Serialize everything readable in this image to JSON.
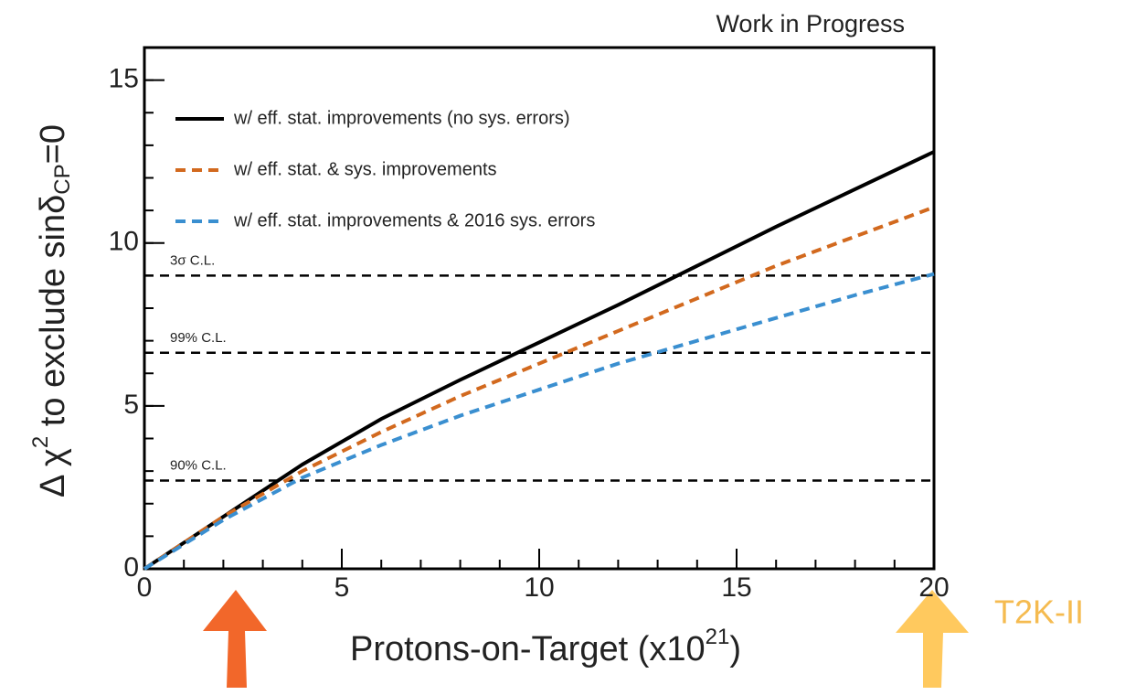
{
  "chart_data": {
    "type": "line",
    "annotation_top": "Work in Progress",
    "xlabel": [
      "Protons-on-Target (x10",
      "21",
      ")"
    ],
    "ylabel": [
      "Δ χ",
      "2",
      " to exclude sinδ",
      "CP",
      "=0"
    ],
    "x": [
      0,
      2,
      4,
      6,
      8,
      10,
      12,
      14,
      16,
      18,
      20
    ],
    "series": [
      {
        "name": "w/ eff. stat. improvements (no sys. errors)",
        "color": "#000000",
        "dash": false,
        "values": [
          0,
          1.6,
          3.2,
          4.6,
          5.8,
          6.95,
          8.1,
          9.3,
          10.5,
          11.65,
          12.8
        ]
      },
      {
        "name": "w/ eff. stat. & sys. improvements",
        "color": "#d2691e",
        "dash": true,
        "values": [
          0,
          1.6,
          3.0,
          4.2,
          5.3,
          6.3,
          7.3,
          8.3,
          9.3,
          10.2,
          11.1
        ]
      },
      {
        "name": "w/ eff. stat. improvements & 2016 sys. errors",
        "color": "#3a8fd0",
        "dash": true,
        "values": [
          0,
          1.5,
          2.8,
          3.8,
          4.7,
          5.5,
          6.3,
          7.0,
          7.7,
          8.4,
          9.05
        ]
      }
    ],
    "reference_lines": [
      {
        "label": "3σ C.L.",
        "value": 9
      },
      {
        "label": "99% C.L.",
        "value": 6.63
      },
      {
        "label": "90% C.L.",
        "value": 2.71
      }
    ],
    "xlim": [
      0,
      20
    ],
    "xticks": [
      0,
      5,
      10,
      15,
      20
    ],
    "ylim": [
      0,
      16
    ],
    "yticks": [
      0,
      5,
      10,
      15
    ],
    "side_annotation": "T2K-II"
  }
}
